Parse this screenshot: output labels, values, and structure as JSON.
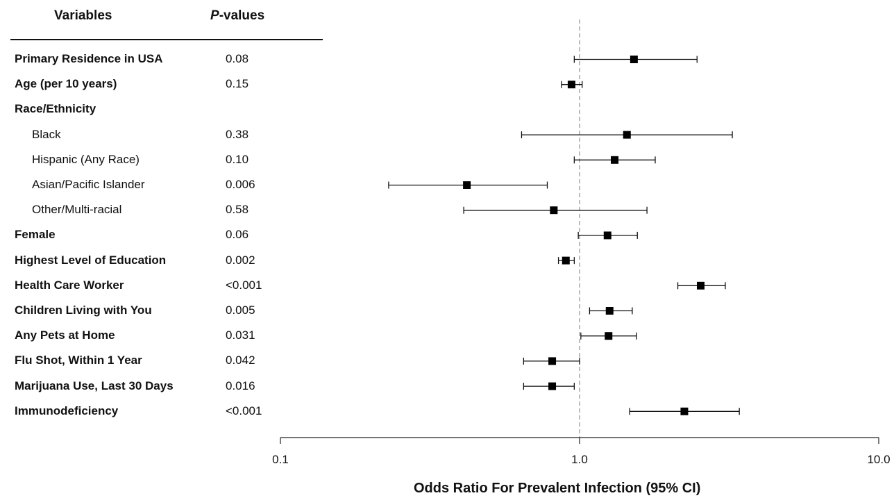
{
  "headers": {
    "variables": "Variables",
    "p_prefix": "P",
    "p_suffix": "-values"
  },
  "rows": [
    {
      "label": "Primary Residence in USA",
      "p": "0.08",
      "indent": false
    },
    {
      "label": "Age (per 10 years)",
      "p": "0.15",
      "indent": false
    },
    {
      "label": "Race/Ethnicity",
      "p": "",
      "indent": false
    },
    {
      "label": "Black",
      "p": "0.38",
      "indent": true
    },
    {
      "label": "Hispanic (Any Race)",
      "p": "0.10",
      "indent": true
    },
    {
      "label": "Asian/Pacific Islander",
      "p": "0.006",
      "indent": true
    },
    {
      "label": "Other/Multi-racial",
      "p": "0.58",
      "indent": true
    },
    {
      "label": "Female",
      "p": "0.06",
      "indent": false
    },
    {
      "label": "Highest Level of Education",
      "p": "0.002",
      "indent": false
    },
    {
      "label": "Health Care Worker",
      "p": "<0.001",
      "indent": false
    },
    {
      "label": "Children Living with You",
      "p": "0.005",
      "indent": false
    },
    {
      "label": "Any Pets at Home",
      "p": "0.031",
      "indent": false
    },
    {
      "label": "Flu Shot, Within 1 Year",
      "p": "0.042",
      "indent": false
    },
    {
      "label": "Marijuana Use, Last 30 Days",
      "p": "0.016",
      "indent": false
    },
    {
      "label": "Immunodeficiency",
      "p": "<0.001",
      "indent": false
    }
  ],
  "chart_data": {
    "type": "forest",
    "xlabel": "Odds Ratio For Prevalent Infection (95% CI)",
    "xscale": "log",
    "xlim": [
      0.1,
      10.0
    ],
    "xticks": [
      0.1,
      1.0,
      10.0
    ],
    "xtick_labels": [
      "0.1",
      "1.0",
      "10.0"
    ],
    "reference_line": 1.0,
    "points": [
      {
        "label": "Primary Residence in USA",
        "or": 1.52,
        "lo": 0.96,
        "hi": 2.47
      },
      {
        "label": "Age (per 10 years)",
        "or": 0.94,
        "lo": 0.87,
        "hi": 1.02
      },
      {
        "label": "Black",
        "or": 1.44,
        "lo": 0.64,
        "hi": 3.24
      },
      {
        "label": "Hispanic (Any Race)",
        "or": 1.31,
        "lo": 0.96,
        "hi": 1.79
      },
      {
        "label": "Asian/Pacific Islander",
        "or": 0.42,
        "lo": 0.23,
        "hi": 0.78
      },
      {
        "label": "Other/Multi-racial",
        "or": 0.82,
        "lo": 0.41,
        "hi": 1.68
      },
      {
        "label": "Female",
        "or": 1.24,
        "lo": 0.99,
        "hi": 1.56
      },
      {
        "label": "Highest Level of Education",
        "or": 0.9,
        "lo": 0.85,
        "hi": 0.96
      },
      {
        "label": "Health Care Worker",
        "or": 2.54,
        "lo": 2.13,
        "hi": 3.07
      },
      {
        "label": "Children Living with You",
        "or": 1.26,
        "lo": 1.08,
        "hi": 1.5
      },
      {
        "label": "Any Pets at Home",
        "or": 1.25,
        "lo": 1.01,
        "hi": 1.55
      },
      {
        "label": "Flu Shot, Within 1 Year",
        "or": 0.81,
        "lo": 0.65,
        "hi": 1.0
      },
      {
        "label": "Marijuana Use, Last 30 Days",
        "or": 0.81,
        "lo": 0.65,
        "hi": 0.96
      },
      {
        "label": "Immunodeficiency",
        "or": 2.24,
        "lo": 1.47,
        "hi": 3.42
      }
    ]
  }
}
